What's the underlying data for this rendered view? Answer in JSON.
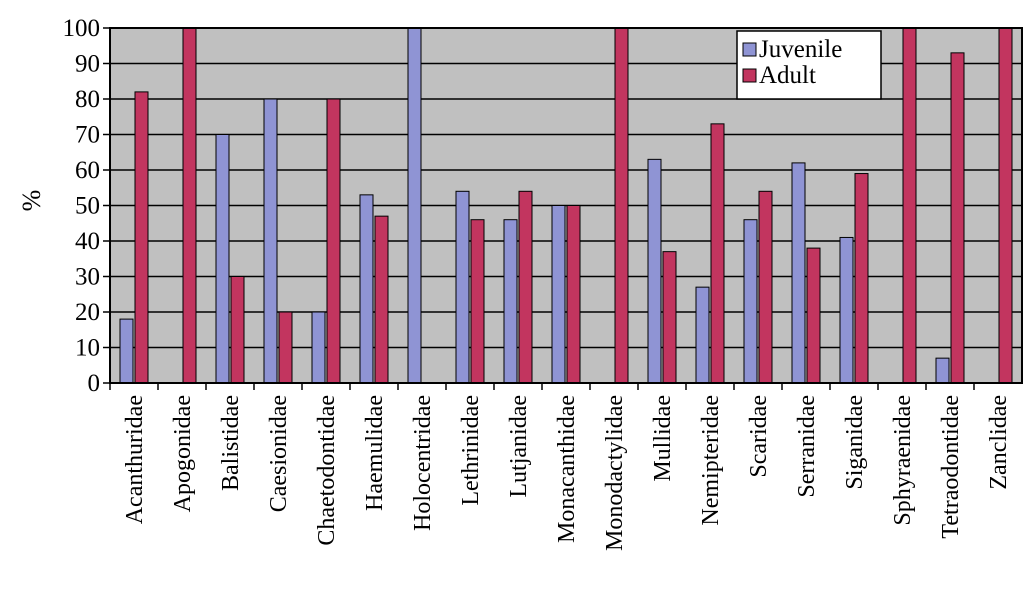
{
  "chart_data": {
    "type": "bar",
    "title": "",
    "xlabel": "",
    "ylabel": "%",
    "ylim": [
      0,
      100
    ],
    "yticks": [
      0,
      10,
      20,
      30,
      40,
      50,
      60,
      70,
      80,
      90,
      100
    ],
    "grid": true,
    "legend_position": "top-right",
    "categories": [
      "Acanthuridae",
      "Apogonidae",
      "Balistidae",
      "Caesionidae",
      "Chaetodontidae",
      "Haemulidae",
      "Holocentridae",
      "Lethrinidae",
      "Lutjanidae",
      "Monacanthidae",
      "Monodactylidae",
      "Mullidae",
      "Nemipteridae",
      "Scaridae",
      "Serranidae",
      "Siganidae",
      "Sphyraenidae",
      "Tetraodontidae",
      "Zanclidae"
    ],
    "series": [
      {
        "name": "Juvenile",
        "color": "#8f94d4",
        "values": [
          18,
          0,
          70,
          80,
          20,
          53,
          100,
          54,
          46,
          50,
          0,
          63,
          27,
          46,
          62,
          41,
          0,
          7,
          0
        ]
      },
      {
        "name": "Adult",
        "color": "#c2355f",
        "values": [
          82,
          100,
          30,
          20,
          80,
          47,
          0,
          46,
          54,
          50,
          100,
          37,
          73,
          54,
          38,
          59,
          100,
          93,
          100
        ]
      }
    ],
    "plot_background": "#c0c0c0"
  }
}
